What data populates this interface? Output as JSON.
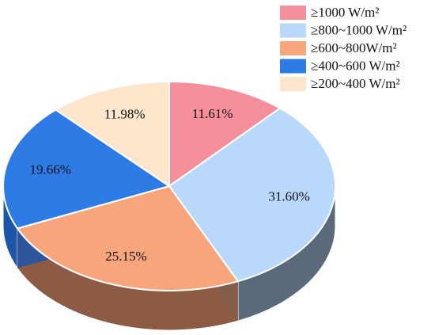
{
  "chart_data": {
    "type": "pie",
    "title": "",
    "slices": [
      {
        "label": "≥1000 W/m²",
        "value": 11.61,
        "display": "11.61%",
        "color": "#f48f9b",
        "side": "#b46a73"
      },
      {
        "label": "≥800~1000 W/m²",
        "value": 31.6,
        "display": "31.60%",
        "color": "#b9d8fa",
        "side": "#5a6a7a"
      },
      {
        "label": "≥600~800W/m²",
        "value": 25.15,
        "display": "25.15%",
        "color": "#f6a57d",
        "side": "#8d5a44"
      },
      {
        "label": "≥400~600 W/m²",
        "value": 19.66,
        "display": "19.66%",
        "color": "#2f7be5",
        "side": "#1d55a8"
      },
      {
        "label": "≥200~400 W/m²",
        "value": 11.98,
        "display": "11.98%",
        "color": "#fde6cc",
        "side": "#c9ae92"
      }
    ],
    "legend_position": "top-right",
    "style": "3d"
  }
}
